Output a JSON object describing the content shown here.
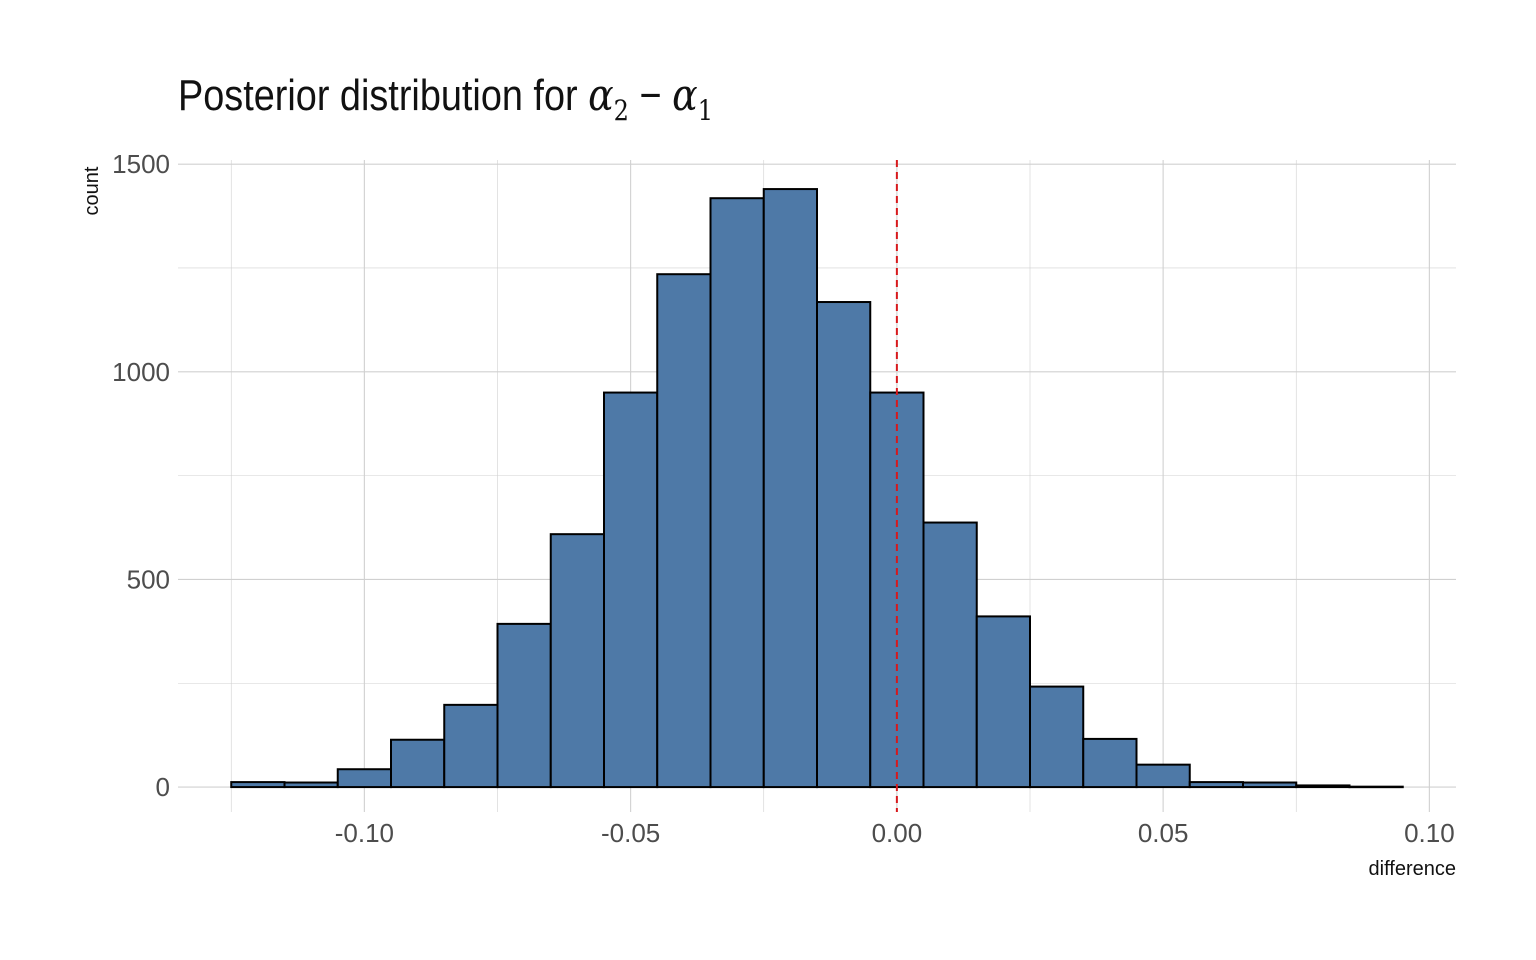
{
  "title": {
    "prefix": "Posterior distribution for ",
    "sym1": "α",
    "sub1": "2",
    "op": " − ",
    "sym2": "α",
    "sub2": "1"
  },
  "chart_data": {
    "type": "bar",
    "title": "Posterior distribution for α2 − α1",
    "xlabel": "difference",
    "ylabel": "count",
    "bin_width": 0.01,
    "bin_centers": [
      -0.12,
      -0.11,
      -0.1,
      -0.09,
      -0.08,
      -0.07,
      -0.06,
      -0.05,
      -0.04,
      -0.03,
      -0.02,
      -0.01,
      0.0,
      0.01,
      0.02,
      0.03,
      0.04,
      0.05,
      0.06,
      0.07,
      0.08,
      0.09
    ],
    "values": [
      12,
      11,
      43,
      114,
      198,
      393,
      609,
      950,
      1235,
      1418,
      1440,
      1168,
      950,
      637,
      411,
      242,
      116,
      54,
      12,
      11,
      4,
      1
    ],
    "xlim": [
      -0.135,
      0.105
    ],
    "ylim": [
      -60,
      1510
    ],
    "x_ticks": [
      -0.1,
      -0.05,
      0.0,
      0.05,
      0.1
    ],
    "x_tick_labels": [
      "-0.10",
      "-0.05",
      "0.00",
      "0.05",
      "0.10"
    ],
    "y_ticks": [
      0,
      500,
      1000,
      1500
    ],
    "y_tick_labels": [
      "0",
      "500",
      "1000",
      "1500"
    ],
    "reference_line": {
      "x": 0.0,
      "style": "dashed",
      "color": "#d7191c"
    },
    "grid": true,
    "colors": {
      "fill": "#4e79a7",
      "outline": "#000000",
      "grid": "#d0d0d0"
    }
  }
}
